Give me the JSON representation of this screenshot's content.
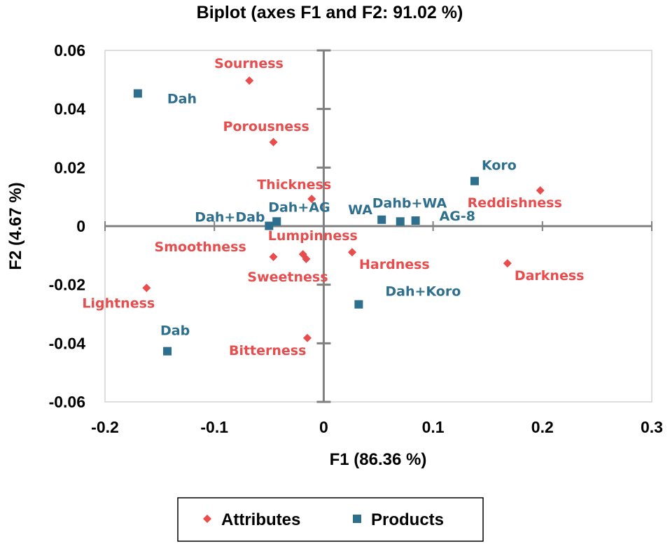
{
  "chart_data": {
    "type": "scatter",
    "title": "Biplot (axes F1 and F2: 91.02 %)",
    "xlabel": "F1 (86.36 %)",
    "ylabel": "F2 (4.67 %)",
    "xlim": [
      -0.2,
      0.3
    ],
    "ylim": [
      -0.06,
      0.06
    ],
    "x_ticks": [
      "-0.2",
      "-0.1",
      "0",
      "0.1",
      "0.2",
      "0.3"
    ],
    "y_ticks": [
      "0.06",
      "0.04",
      "0.02",
      "0",
      "-0.02",
      "-0.04",
      "-0.06"
    ],
    "x_tick_values": [
      -0.2,
      -0.1,
      0,
      0.1,
      0.2,
      0.3
    ],
    "y_tick_values": [
      0.06,
      0.04,
      0.02,
      0,
      -0.02,
      -0.04,
      -0.06
    ],
    "grid": false,
    "legend_position": "bottom",
    "series": [
      {
        "name": "Attributes",
        "marker": "diamond",
        "color": "#e84c4c",
        "points": [
          {
            "label": "Sourness",
            "x": -0.068,
            "y": 0.0497
          },
          {
            "label": "Porousness",
            "x": -0.046,
            "y": 0.0287
          },
          {
            "label": "Thickness",
            "x": -0.011,
            "y": 0.0093
          },
          {
            "label": "Reddishness",
            "x": 0.198,
            "y": 0.0122
          },
          {
            "label": "Lumpinness",
            "x": -0.019,
            "y": -0.0096
          },
          {
            "label": "Smoothness",
            "x": -0.046,
            "y": -0.0105
          },
          {
            "label": "Sweetness",
            "x": -0.016,
            "y": -0.0112
          },
          {
            "label": "Hardness",
            "x": 0.026,
            "y": -0.0089
          },
          {
            "label": "Darkness",
            "x": 0.168,
            "y": -0.0127
          },
          {
            "label": "Lightness",
            "x": -0.162,
            "y": -0.0211
          },
          {
            "label": "Bitterness",
            "x": -0.015,
            "y": -0.0382
          }
        ]
      },
      {
        "name": "Products",
        "marker": "square",
        "color": "#2e6f8e",
        "points": [
          {
            "label": "Dah",
            "x": -0.17,
            "y": 0.0453
          },
          {
            "label": "Koro",
            "x": 0.138,
            "y": 0.0154
          },
          {
            "label": "Dah+AG",
            "x": -0.043,
            "y": 0.0016
          },
          {
            "label": "Dah+Dab",
            "x": -0.05,
            "y": 0.0001
          },
          {
            "label": "WA",
            "x": 0.053,
            "y": 0.0022
          },
          {
            "label": "Dahb+WA",
            "x": 0.07,
            "y": 0.0016
          },
          {
            "label": "AG-8",
            "x": 0.084,
            "y": 0.0019
          },
          {
            "label": "Dah+Koro",
            "x": 0.032,
            "y": -0.0267
          },
          {
            "label": "Dab",
            "x": -0.143,
            "y": -0.0427
          }
        ]
      }
    ]
  }
}
